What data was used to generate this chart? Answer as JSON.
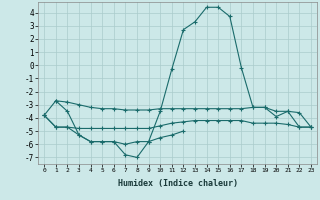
{
  "xlabel": "Humidex (Indice chaleur)",
  "background_color": "#cce8e8",
  "grid_color": "#aacccc",
  "line_color": "#1a6b6b",
  "xlim": [
    -0.5,
    23.5
  ],
  "ylim": [
    -7.5,
    4.8
  ],
  "yticks": [
    -7,
    -6,
    -5,
    -4,
    -3,
    -2,
    -1,
    0,
    1,
    2,
    3,
    4
  ],
  "xticks": [
    0,
    1,
    2,
    3,
    4,
    5,
    6,
    7,
    8,
    9,
    10,
    11,
    12,
    13,
    14,
    15,
    16,
    17,
    18,
    19,
    20,
    21,
    22,
    23
  ],
  "line1_x": [
    0,
    1,
    2,
    3,
    4,
    5,
    6,
    7,
    8,
    9,
    10,
    11,
    12,
    13,
    14,
    15,
    16,
    17,
    18,
    19,
    20,
    21,
    22,
    23
  ],
  "line1_y": [
    -3.8,
    -2.7,
    -2.8,
    -3.0,
    -3.2,
    -3.3,
    -3.3,
    -3.4,
    -3.4,
    -3.4,
    -3.3,
    -3.3,
    -3.3,
    -3.3,
    -3.3,
    -3.3,
    -3.3,
    -3.3,
    -3.2,
    -3.2,
    -3.5,
    -3.5,
    -3.6,
    -4.7
  ],
  "line2_x": [
    0,
    1,
    2,
    3,
    4,
    5,
    6,
    7,
    8,
    9,
    10,
    11,
    12,
    13,
    14,
    15,
    16,
    17,
    18,
    19,
    20,
    21,
    22,
    23
  ],
  "line2_y": [
    -3.8,
    -4.7,
    -4.7,
    -4.8,
    -4.8,
    -4.8,
    -4.8,
    -4.8,
    -4.8,
    -4.8,
    -4.6,
    -4.4,
    -4.3,
    -4.2,
    -4.2,
    -4.2,
    -4.2,
    -4.2,
    -4.4,
    -4.4,
    -4.4,
    -4.5,
    -4.7,
    -4.7
  ],
  "line3_x": [
    0,
    1,
    2,
    3,
    4,
    5,
    6,
    7,
    8,
    9,
    10,
    11,
    12
  ],
  "line3_y": [
    -3.8,
    -4.7,
    -4.7,
    -5.3,
    -5.8,
    -5.8,
    -5.8,
    -6.0,
    -5.8,
    -5.8,
    -5.5,
    -5.3,
    -5.0
  ],
  "line4_x": [
    1,
    2,
    3,
    4,
    5,
    6,
    7,
    8,
    9,
    10,
    11,
    12,
    13,
    14,
    15,
    16,
    17,
    18,
    19,
    20,
    21,
    22,
    23
  ],
  "line4_y": [
    -2.7,
    -3.5,
    -5.3,
    -5.8,
    -5.8,
    -5.8,
    -6.8,
    -7.0,
    -5.8,
    -3.5,
    -0.3,
    2.7,
    3.3,
    4.4,
    4.4,
    3.7,
    -0.2,
    -3.2,
    -3.2,
    -3.9,
    -3.5,
    -4.7,
    -4.7
  ]
}
